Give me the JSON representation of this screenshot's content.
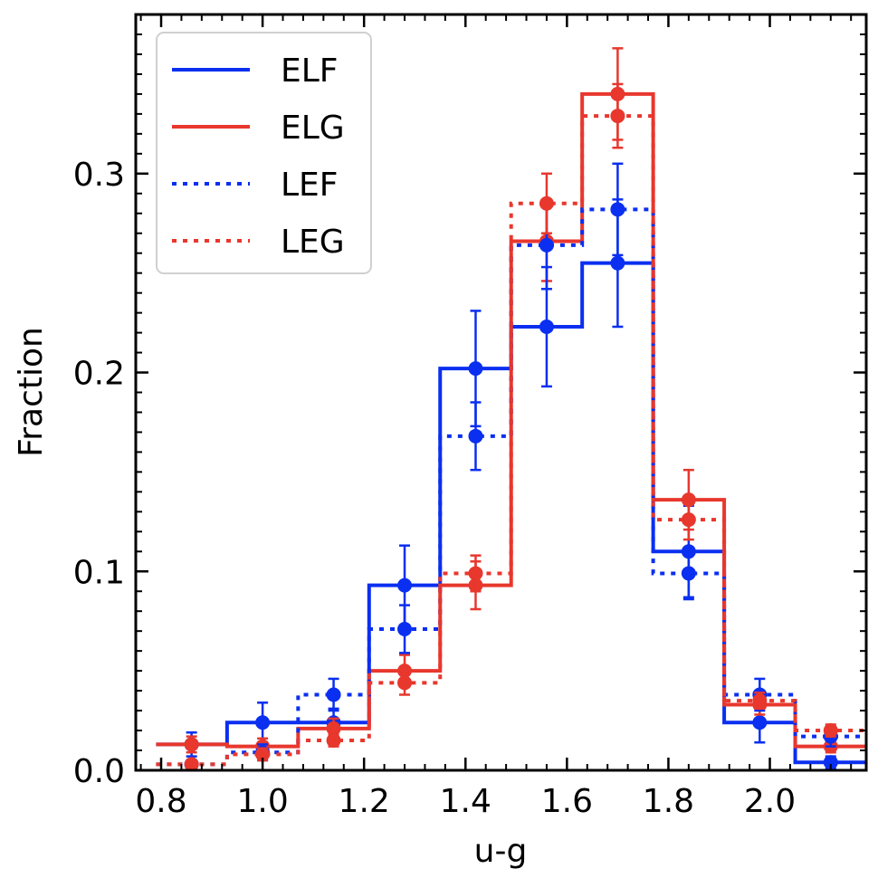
{
  "chart_data": {
    "type": "step-histogram",
    "title": "",
    "xlabel": "u-g",
    "ylabel": "Fraction",
    "xlim": [
      0.75,
      2.19
    ],
    "ylim": [
      0.0,
      0.38
    ],
    "xticks": [
      0.8,
      1.0,
      1.2,
      1.4,
      1.6,
      1.8,
      2.0
    ],
    "xtick_labels": [
      "0.8",
      "1.0",
      "1.2",
      "1.4",
      "1.6",
      "1.8",
      "2.0"
    ],
    "yticks": [
      0.0,
      0.1,
      0.2,
      0.3
    ],
    "ytick_labels": [
      "0.0",
      "0.1",
      "0.2",
      "0.3"
    ],
    "bin_edges": [
      0.79,
      0.93,
      1.07,
      1.21,
      1.35,
      1.49,
      1.63,
      1.77,
      1.91,
      2.05,
      2.19
    ],
    "bin_centers": [
      0.86,
      1.0,
      1.14,
      1.28,
      1.42,
      1.56,
      1.7,
      1.84,
      1.98,
      2.12
    ],
    "grid": false,
    "legend_position": "top-left",
    "series": [
      {
        "name": "ELF",
        "color": "#0a2ff0",
        "linestyle": "solid",
        "values": [
          0.013,
          0.024,
          0.024,
          0.093,
          0.202,
          0.223,
          0.255,
          0.11,
          0.024,
          0.004
        ],
        "errors": [
          0.006,
          0.01,
          0.007,
          0.02,
          0.029,
          0.03,
          0.032,
          0.023,
          0.01,
          0.003
        ]
      },
      {
        "name": "ELG",
        "color": "#e8372d",
        "linestyle": "solid",
        "values": [
          0.013,
          0.012,
          0.021,
          0.05,
          0.093,
          0.266,
          0.34,
          0.136,
          0.033,
          0.012
        ],
        "errors": [
          0.004,
          0.004,
          0.005,
          0.008,
          0.012,
          0.02,
          0.023,
          0.015,
          0.005,
          0.003
        ]
      },
      {
        "name": "LEF",
        "color": "#0a2ff0",
        "linestyle": "dotted",
        "values": [
          0.003,
          0.009,
          0.038,
          0.071,
          0.168,
          0.264,
          0.282,
          0.099,
          0.038,
          0.017
        ],
        "errors": [
          0.002,
          0.004,
          0.008,
          0.012,
          0.017,
          0.022,
          0.023,
          0.013,
          0.008,
          0.005
        ]
      },
      {
        "name": "LEG",
        "color": "#e8372d",
        "linestyle": "dotted",
        "values": [
          0.003,
          0.008,
          0.015,
          0.044,
          0.099,
          0.285,
          0.329,
          0.126,
          0.035,
          0.02
        ],
        "errors": [
          0.001,
          0.003,
          0.003,
          0.006,
          0.009,
          0.015,
          0.016,
          0.01,
          0.004,
          0.003
        ]
      }
    ]
  }
}
